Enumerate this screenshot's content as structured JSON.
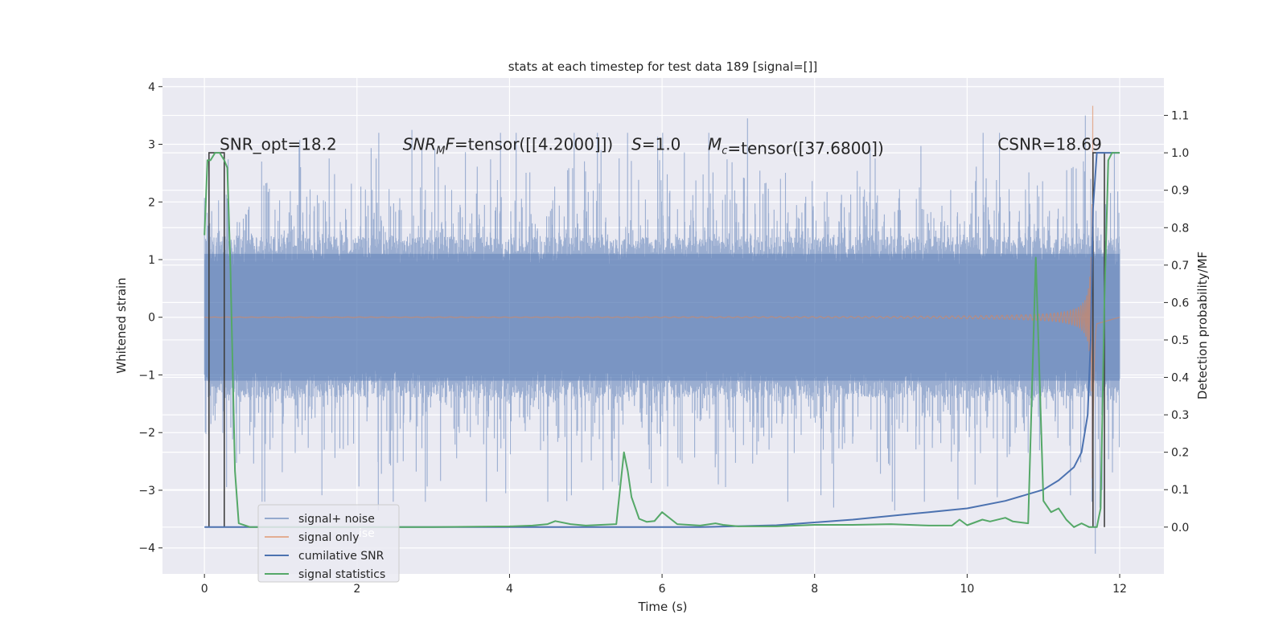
{
  "chart_data": {
    "type": "line",
    "title": "stats at each timestep for test data 189 [signal=[]]",
    "xlabel": "Time (s)",
    "ylabel": "Whitened strain",
    "y2label": "Detection probability/MF",
    "xlim": [
      -0.55,
      12.58
    ],
    "ylim": [
      -4.45,
      4.15
    ],
    "y2lim": [
      -0.125,
      1.2
    ],
    "x_ticks": [
      0,
      2,
      4,
      6,
      8,
      10,
      12
    ],
    "x_tick_labels": [
      "0",
      "2",
      "4",
      "6",
      "8",
      "10",
      "12"
    ],
    "y_ticks": [
      -4,
      -3,
      -2,
      -1,
      0,
      1,
      2,
      3,
      4
    ],
    "y_tick_labels": [
      "−4",
      "−3",
      "−2",
      "−1",
      "0",
      "1",
      "2",
      "3",
      "4"
    ],
    "y2_ticks": [
      0.0,
      0.1,
      0.2,
      0.3,
      0.4,
      0.5,
      0.6,
      0.7,
      0.8,
      0.9,
      1.0,
      1.1
    ],
    "y2_tick_labels": [
      "0.0",
      "0.1",
      "0.2",
      "0.3",
      "0.4",
      "0.5",
      "0.6",
      "0.7",
      "0.8",
      "0.9",
      "1.0",
      "1.1"
    ],
    "grid": true,
    "legend_position": "lower-left",
    "annotations": [
      {
        "text": "SNR_opt=18.2",
        "x": 0.2,
        "y": 3.0
      },
      {
        "text": "=tensor([[4.2000]])",
        "prefix_italic": "SNR",
        "prefix_sub": "M",
        "prefix_tail": "F",
        "x": 2.6,
        "y": 3.0
      },
      {
        "text": "=1.0",
        "prefix_italic": "S",
        "x": 5.6,
        "y": 3.0
      },
      {
        "text": "=tensor([37.6800])",
        "prefix_italic": "M",
        "prefix_sub": "c",
        "x": 6.6,
        "y": 3.0
      },
      {
        "text": "CSNR=18.69",
        "x": 10.4,
        "y": 3.0
      }
    ],
    "series": [
      {
        "name": "signal+ noise",
        "color": "#4c72b0",
        "axis": "left",
        "kind": "noise",
        "t_range": [
          0,
          12
        ],
        "amplitude_sigma": 0.75,
        "spikes": [
          {
            "x": 2.72,
            "y": 3.25
          },
          {
            "x": 7.12,
            "y": 3.45
          },
          {
            "x": 5.2,
            "y": 2.9
          },
          {
            "x": 2.28,
            "y": -3.35
          },
          {
            "x": 9.05,
            "y": -3.35
          },
          {
            "x": 8.25,
            "y": -3.3
          },
          {
            "x": 3.95,
            "y": -3.05
          },
          {
            "x": 11.55,
            "y": 3.5
          },
          {
            "x": 11.68,
            "y": -4.1
          },
          {
            "x": 11.62,
            "y": 2.4
          },
          {
            "x": 11.74,
            "y": -3.3
          }
        ]
      },
      {
        "name": "signal only",
        "color": "#dd8452",
        "axis": "left",
        "kind": "chirp",
        "t_range": [
          0,
          12
        ],
        "merger_time": 11.65,
        "peak_amplitude": 3.8
      },
      {
        "name": "cumilative SNR",
        "color": "#4c72b0",
        "axis": "right",
        "kind": "line",
        "x": [
          0,
          6.5,
          7.5,
          8.5,
          9.5,
          10.0,
          10.5,
          11.0,
          11.2,
          11.4,
          11.5,
          11.58,
          11.62,
          11.65,
          11.7,
          11.9,
          12.0
        ],
        "y": [
          0,
          0,
          0.005,
          0.02,
          0.04,
          0.05,
          0.07,
          0.1,
          0.125,
          0.16,
          0.2,
          0.3,
          0.5,
          0.85,
          1.0,
          1.0,
          1.0
        ]
      },
      {
        "name": "signal statistics",
        "color": "#55a868",
        "axis": "right",
        "kind": "line",
        "x": [
          0,
          0.04,
          0.08,
          0.14,
          0.2,
          0.26,
          0.3,
          0.34,
          0.4,
          0.45,
          0.6,
          1.0,
          2.0,
          3.0,
          4.0,
          4.3,
          4.5,
          4.6,
          4.8,
          5.0,
          5.4,
          5.5,
          5.55,
          5.6,
          5.7,
          5.8,
          5.9,
          6.0,
          6.2,
          6.5,
          6.7,
          6.8,
          7.0,
          7.5,
          8.0,
          8.5,
          9.0,
          9.5,
          9.8,
          9.9,
          10.0,
          10.2,
          10.3,
          10.5,
          10.6,
          10.8,
          10.9,
          11.0,
          11.1,
          11.2,
          11.3,
          11.4,
          11.5,
          11.6,
          11.7,
          11.75,
          11.8,
          11.85,
          11.9,
          12.0
        ],
        "y": [
          0.78,
          0.98,
          0.98,
          1.0,
          1.0,
          0.98,
          0.96,
          0.7,
          0.15,
          0.01,
          0.0,
          0.0,
          0.0,
          0.0,
          0.002,
          0.004,
          0.008,
          0.016,
          0.008,
          0.004,
          0.008,
          0.2,
          0.15,
          0.08,
          0.022,
          0.014,
          0.016,
          0.04,
          0.008,
          0.004,
          0.01,
          0.006,
          0.002,
          0.002,
          0.006,
          0.006,
          0.008,
          0.004,
          0.004,
          0.02,
          0.005,
          0.02,
          0.015,
          0.025,
          0.015,
          0.01,
          0.72,
          0.07,
          0.04,
          0.05,
          0.02,
          0.0,
          0.01,
          0.0,
          0.0,
          0.05,
          0.6,
          0.98,
          1.0,
          1.0
        ]
      }
    ],
    "step_series": [
      {
        "color": "#404040",
        "axis": "right",
        "x": [
          0.06,
          0.06,
          0.26,
          0.26
        ],
        "y": [
          0,
          1.0,
          1.0,
          0
        ]
      },
      {
        "color": "#404040",
        "axis": "right",
        "x": [
          11.65,
          11.65,
          11.8,
          11.8
        ],
        "y": [
          0,
          1.0,
          1.0,
          0
        ]
      }
    ],
    "legend_overlap_text": "ise"
  }
}
